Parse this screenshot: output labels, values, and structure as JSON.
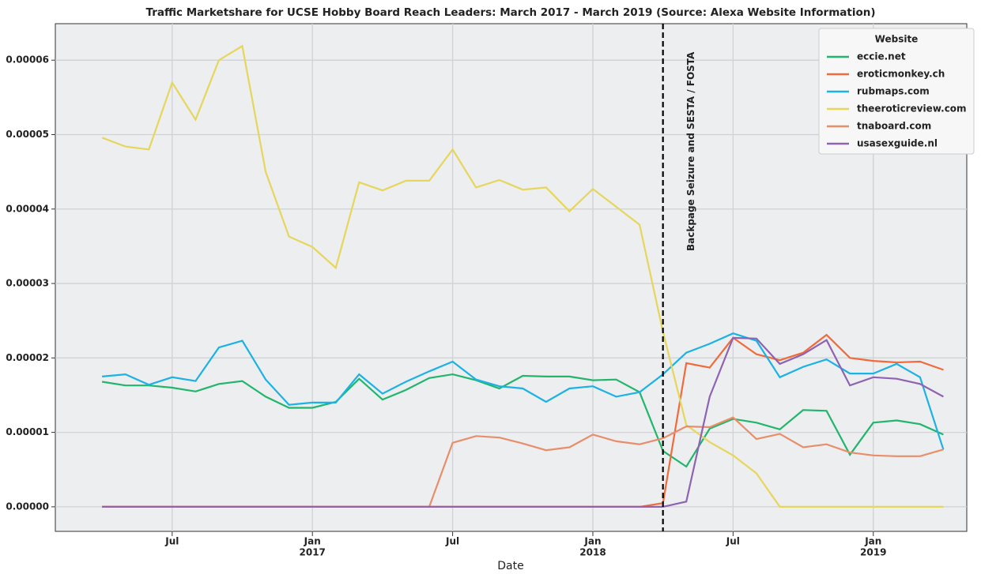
{
  "chart_data": {
    "type": "line",
    "title": "Traffic Marketshare for UCSE Hobby Board Reach Leaders: March 2017 - March 2019 (Source: Alexa Website Information)",
    "x_label": "Date",
    "x": [
      "2016-04",
      "2016-05",
      "2016-06",
      "2016-07",
      "2016-08",
      "2016-09",
      "2016-10",
      "2016-11",
      "2016-12",
      "2017-01",
      "2017-02",
      "2017-03",
      "2017-04",
      "2017-05",
      "2017-06",
      "2017-07",
      "2017-08",
      "2017-09",
      "2017-10",
      "2017-11",
      "2017-12",
      "2018-01",
      "2018-02",
      "2018-03",
      "2018-04",
      "2018-05",
      "2018-06",
      "2018-07",
      "2018-08",
      "2018-09",
      "2018-10",
      "2018-11",
      "2018-12",
      "2019-01",
      "2019-02",
      "2019-03",
      "2019-04"
    ],
    "series": [
      {
        "name": "eccie.net",
        "color": "#22b56c",
        "values": [
          1.68e-05,
          1.63e-05,
          1.63e-05,
          1.6e-05,
          1.55e-05,
          1.65e-05,
          1.69e-05,
          1.48e-05,
          1.33e-05,
          1.33e-05,
          1.41e-05,
          1.72e-05,
          1.44e-05,
          1.57e-05,
          1.73e-05,
          1.78e-05,
          1.7e-05,
          1.59e-05,
          1.76e-05,
          1.75e-05,
          1.75e-05,
          1.7e-05,
          1.71e-05,
          1.54e-05,
          7.5e-06,
          5.4e-06,
          1.05e-05,
          1.18e-05,
          1.13e-05,
          1.04e-05,
          1.3e-05,
          1.29e-05,
          7e-06,
          1.13e-05,
          1.16e-05,
          1.11e-05,
          9.7e-06
        ]
      },
      {
        "name": "eroticmonkey.ch",
        "color": "#f06a3c",
        "values": [
          0,
          0,
          0,
          0,
          0,
          0,
          0,
          0,
          0,
          0,
          0,
          0,
          0,
          0,
          0,
          0,
          0,
          0,
          0,
          0,
          0,
          0,
          0,
          0,
          5e-07,
          1.93e-05,
          1.87e-05,
          2.27e-05,
          2.05e-05,
          1.97e-05,
          2.07e-05,
          2.31e-05,
          2e-05,
          1.96e-05,
          1.94e-05,
          1.95e-05,
          1.84e-05
        ]
      },
      {
        "name": "rubmaps.com",
        "color": "#1cb2e4",
        "values": [
          1.75e-05,
          1.78e-05,
          1.64e-05,
          1.74e-05,
          1.69e-05,
          2.14e-05,
          2.23e-05,
          1.71e-05,
          1.37e-05,
          1.4e-05,
          1.4e-05,
          1.78e-05,
          1.52e-05,
          1.68e-05,
          1.82e-05,
          1.95e-05,
          1.71e-05,
          1.62e-05,
          1.59e-05,
          1.41e-05,
          1.59e-05,
          1.62e-05,
          1.48e-05,
          1.54e-05,
          1.78e-05,
          2.07e-05,
          2.19e-05,
          2.33e-05,
          2.23e-05,
          1.74e-05,
          1.88e-05,
          1.98e-05,
          1.79e-05,
          1.79e-05,
          1.92e-05,
          1.74e-05,
          7.7e-06
        ]
      },
      {
        "name": "theeroticreview.com",
        "color": "#e6d65c",
        "values": [
          4.96e-05,
          4.84e-05,
          4.8e-05,
          5.7e-05,
          5.2e-05,
          6e-05,
          6.19e-05,
          4.5e-05,
          3.63e-05,
          3.49e-05,
          3.21e-05,
          4.36e-05,
          4.25e-05,
          4.38e-05,
          4.38e-05,
          4.8e-05,
          4.29e-05,
          4.39e-05,
          4.26e-05,
          4.29e-05,
          3.97e-05,
          4.27e-05,
          4.03e-05,
          3.79e-05,
          2.35e-05,
          1.1e-05,
          8.7e-06,
          6.9e-06,
          4.5e-06,
          0,
          0,
          0,
          0,
          0,
          0,
          0,
          0
        ]
      },
      {
        "name": "tnaboard.com",
        "color": "#e88e6a",
        "values": [
          0,
          0,
          0,
          0,
          0,
          0,
          0,
          0,
          0,
          0,
          0,
          0,
          0,
          0,
          0,
          8.6e-06,
          9.5e-06,
          9.3e-06,
          8.5e-06,
          7.6e-06,
          8e-06,
          9.7e-06,
          8.8e-06,
          8.4e-06,
          9.2e-06,
          1.08e-05,
          1.07e-05,
          1.2e-05,
          9.1e-06,
          9.8e-06,
          8e-06,
          8.4e-06,
          7.3e-06,
          6.9e-06,
          6.8e-06,
          6.8e-06,
          7.7e-06
        ]
      },
      {
        "name": "usasexguide.nl",
        "color": "#8e63b0",
        "values": [
          0,
          0,
          0,
          0,
          0,
          0,
          0,
          0,
          0,
          0,
          0,
          0,
          0,
          0,
          0,
          0,
          0,
          0,
          0,
          0,
          0,
          0,
          0,
          0,
          0,
          7e-07,
          1.48e-05,
          2.27e-05,
          2.26e-05,
          1.92e-05,
          2.05e-05,
          2.24e-05,
          1.63e-05,
          1.74e-05,
          1.72e-05,
          1.65e-05,
          1.48e-05
        ]
      }
    ],
    "xlim": [
      "2016-02",
      "2019-05"
    ],
    "xticks": [
      {
        "value": "2016-07",
        "label": "Jul"
      },
      {
        "value": "2017-01",
        "label": "Jan",
        "year": "2017"
      },
      {
        "value": "2017-07",
        "label": "Jul"
      },
      {
        "value": "2018-01",
        "label": "Jan",
        "year": "2018"
      },
      {
        "value": "2018-07",
        "label": "Jul"
      },
      {
        "value": "2019-01",
        "label": "Jan",
        "year": "2019"
      }
    ],
    "ylim": [
      -3.3e-06,
      6.49e-05
    ],
    "yticks": [
      {
        "value": 0,
        "label": "0.00000"
      },
      {
        "value": 1e-05,
        "label": "0.00001"
      },
      {
        "value": 2e-05,
        "label": "0.00002"
      },
      {
        "value": 3e-05,
        "label": "0.00003"
      },
      {
        "value": 4e-05,
        "label": "0.00004"
      },
      {
        "value": 5e-05,
        "label": "0.00005"
      },
      {
        "value": 6e-05,
        "label": "0.00006"
      }
    ],
    "grid": true,
    "legend": {
      "title": "Website",
      "position": "upper right"
    },
    "annotation": {
      "x": "2018-04",
      "text": "Backpage Seizure and SESTA / FOSTA"
    }
  }
}
